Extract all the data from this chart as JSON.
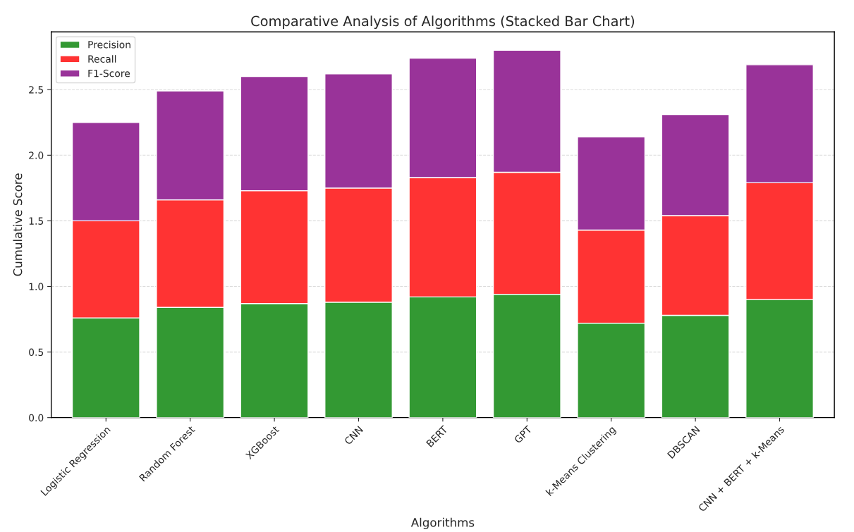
{
  "chart_data": {
    "type": "bar",
    "title": "Comparative Analysis of Algorithms (Stacked Bar Chart)",
    "xlabel": "Algorithms",
    "ylabel": "Cumulative Score",
    "categories": [
      "Logistic Regression",
      "Random Forest",
      "XGBoost",
      "CNN",
      "BERT",
      "GPT",
      "k-Means Clustering",
      "DBSCAN",
      "CNN + BERT + k-Means"
    ],
    "stacked": true,
    "series": [
      {
        "name": "Precision",
        "color": "#339933",
        "values": [
          0.76,
          0.84,
          0.87,
          0.88,
          0.92,
          0.94,
          0.72,
          0.78,
          0.9
        ]
      },
      {
        "name": "Recall",
        "color": "#ff3333",
        "values": [
          0.74,
          0.82,
          0.86,
          0.87,
          0.91,
          0.93,
          0.71,
          0.76,
          0.89
        ]
      },
      {
        "name": "F1-Score",
        "color": "#993399",
        "values": [
          0.75,
          0.83,
          0.87,
          0.87,
          0.91,
          0.93,
          0.71,
          0.77,
          0.9
        ]
      }
    ],
    "ylim": [
      0,
      2.94
    ],
    "yticks": [
      {
        "value": 0,
        "label": "0.0"
      },
      {
        "value": 0.5,
        "label": "0.5"
      },
      {
        "value": 1,
        "label": "1.0"
      },
      {
        "value": 1.5,
        "label": "1.5"
      },
      {
        "value": 2,
        "label": "2.0"
      },
      {
        "value": 2.5,
        "label": "2.5"
      }
    ],
    "grid": "y",
    "legend": "top left"
  }
}
